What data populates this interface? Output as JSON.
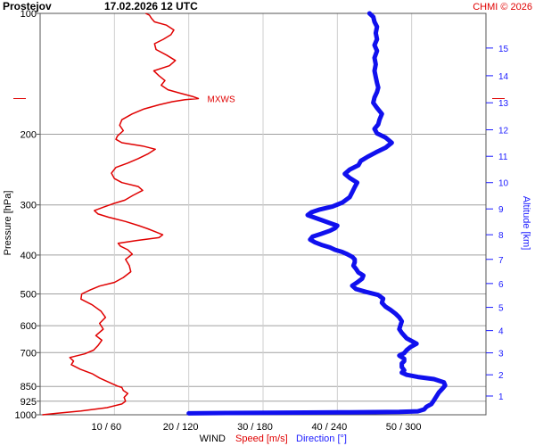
{
  "header": {
    "station": "Prostejov",
    "datetime": "17.02.2026 12 UTC",
    "credit": "CHMI © 2026"
  },
  "chart_data": {
    "type": "line",
    "left_axis": {
      "label": "Pressure [hPa]",
      "scale": "log",
      "ticks": [
        100,
        200,
        300,
        400,
        500,
        600,
        700,
        850,
        925,
        1000
      ],
      "tick_labels": [
        "100",
        "200",
        "300",
        "400",
        "500",
        "600",
        "700",
        "850",
        "925",
        "1000"
      ],
      "range": [
        100,
        1000
      ],
      "reversed": true
    },
    "right_axis": {
      "label": "Altitude [km]",
      "ticks": [
        1,
        2,
        3,
        4,
        5,
        6,
        7,
        8,
        9,
        10,
        11,
        12,
        13,
        14,
        15
      ],
      "tick_pressures": [
        898,
        795,
        701,
        617,
        540,
        471,
        410,
        356,
        307,
        264,
        227,
        195,
        167,
        143,
        122
      ],
      "color": "#1a1aff"
    },
    "bottom_axis": {
      "title": "WIND",
      "speed_label": "Speed [m/s]",
      "direction_label": "Direction [°]",
      "speed_range": [
        0,
        60
      ],
      "direction_range": [
        0,
        360
      ],
      "ticks": [
        10,
        20,
        30,
        40,
        50
      ],
      "tick_labels": [
        "10 / 60",
        "20 / 120",
        "30 / 180",
        "40 / 240",
        "50 / 300"
      ]
    },
    "grid": true,
    "annotation": {
      "text": "MXWS",
      "pressure": 163,
      "speed": 21.3
    },
    "series": [
      {
        "name": "Speed [m/s]",
        "unit": "m/s",
        "color": "#e00000",
        "points": [
          [
            1000,
            0.3
          ],
          [
            992,
            2.2
          ],
          [
            978,
            5.5
          ],
          [
            960,
            9.0
          ],
          [
            940,
            11.0
          ],
          [
            925,
            11.5
          ],
          [
            905,
            11.3
          ],
          [
            885,
            11.8
          ],
          [
            870,
            11.2
          ],
          [
            855,
            11.0
          ],
          [
            848,
            10.4
          ],
          [
            835,
            9.6
          ],
          [
            810,
            8.0
          ],
          [
            790,
            7.0
          ],
          [
            770,
            5.4
          ],
          [
            750,
            4.2
          ],
          [
            735,
            4.5
          ],
          [
            720,
            4.0
          ],
          [
            705,
            6.0
          ],
          [
            690,
            7.2
          ],
          [
            672,
            7.8
          ],
          [
            652,
            8.3
          ],
          [
            635,
            7.5
          ],
          [
            612,
            8.5
          ],
          [
            592,
            8.0
          ],
          [
            572,
            8.8
          ],
          [
            552,
            8.2
          ],
          [
            532,
            7.0
          ],
          [
            515,
            5.5
          ],
          [
            500,
            5.6
          ],
          [
            488,
            6.8
          ],
          [
            478,
            8.0
          ],
          [
            468,
            10.0
          ],
          [
            455,
            11.2
          ],
          [
            440,
            12.2
          ],
          [
            425,
            12.0
          ],
          [
            410,
            11.5
          ],
          [
            398,
            12.4
          ],
          [
            388,
            11.8
          ],
          [
            380,
            10.8
          ],
          [
            374,
            10.5
          ],
          [
            368,
            13.0
          ],
          [
            362,
            16.0
          ],
          [
            356,
            16.5
          ],
          [
            350,
            15.5
          ],
          [
            344,
            14.5
          ],
          [
            338,
            13.3
          ],
          [
            330,
            11.5
          ],
          [
            322,
            9.2
          ],
          [
            316,
            7.8
          ],
          [
            310,
            7.3
          ],
          [
            304,
            8.5
          ],
          [
            298,
            9.8
          ],
          [
            292,
            11.4
          ],
          [
            284,
            12.5
          ],
          [
            276,
            13.8
          ],
          [
            270,
            13.2
          ],
          [
            264,
            11.0
          ],
          [
            258,
            10.0
          ],
          [
            250,
            9.6
          ],
          [
            242,
            10.2
          ],
          [
            236,
            11.8
          ],
          [
            230,
            13.2
          ],
          [
            224,
            14.5
          ],
          [
            218,
            15.5
          ],
          [
            214,
            13.8
          ],
          [
            210,
            11.0
          ],
          [
            206,
            10.2
          ],
          [
            202,
            10.4
          ],
          [
            196,
            11.2
          ],
          [
            190,
            10.7
          ],
          [
            184,
            11.0
          ],
          [
            178,
            12.4
          ],
          [
            173,
            14.0
          ],
          [
            169,
            16.0
          ],
          [
            166,
            17.8
          ],
          [
            164,
            19.5
          ],
          [
            163,
            21.3
          ],
          [
            161,
            20.5
          ],
          [
            158,
            18.8
          ],
          [
            155,
            17.2
          ],
          [
            151,
            16.3
          ],
          [
            147,
            16.8
          ],
          [
            143,
            16.0
          ],
          [
            139,
            15.3
          ],
          [
            135,
            17.4
          ],
          [
            131,
            18.2
          ],
          [
            127,
            17.0
          ],
          [
            123,
            15.6
          ],
          [
            119,
            15.4
          ],
          [
            116,
            16.6
          ],
          [
            113,
            17.6
          ],
          [
            110,
            18.0
          ],
          [
            107,
            17.0
          ],
          [
            105,
            15.4
          ],
          [
            103,
            15.0
          ],
          [
            101,
            14.7
          ],
          [
            100,
            14.2
          ]
        ]
      },
      {
        "name": "Direction [°]",
        "unit": "°",
        "color": "#1010ee",
        "points": [
          [
            992,
            120
          ],
          [
            990,
            150
          ],
          [
            988,
            200
          ],
          [
            986,
            250
          ],
          [
            984,
            290
          ],
          [
            980,
            305
          ],
          [
            970,
            310
          ],
          [
            955,
            312
          ],
          [
            940,
            316
          ],
          [
            920,
            318
          ],
          [
            900,
            320
          ],
          [
            880,
            322
          ],
          [
            860,
            325
          ],
          [
            845,
            327
          ],
          [
            830,
            326
          ],
          [
            815,
            318
          ],
          [
            805,
            305
          ],
          [
            795,
            296
          ],
          [
            785,
            292
          ],
          [
            775,
            294
          ],
          [
            760,
            292
          ],
          [
            745,
            292
          ],
          [
            735,
            294
          ],
          [
            725,
            294
          ],
          [
            712,
            290
          ],
          [
            702,
            294
          ],
          [
            690,
            296
          ],
          [
            678,
            299
          ],
          [
            665,
            304
          ],
          [
            655,
            300
          ],
          [
            645,
            296
          ],
          [
            635,
            294
          ],
          [
            625,
            292
          ],
          [
            612,
            290
          ],
          [
            598,
            291
          ],
          [
            585,
            292
          ],
          [
            572,
            290
          ],
          [
            560,
            287
          ],
          [
            548,
            283
          ],
          [
            538,
            279
          ],
          [
            526,
            276
          ],
          [
            514,
            277
          ],
          [
            503,
            273
          ],
          [
            494,
            263
          ],
          [
            486,
            255
          ],
          [
            477,
            252
          ],
          [
            468,
            256
          ],
          [
            458,
            260
          ],
          [
            450,
            261
          ],
          [
            442,
            257
          ],
          [
            433,
            255
          ],
          [
            425,
            253
          ],
          [
            417,
            254
          ],
          [
            410,
            254
          ],
          [
            404,
            252
          ],
          [
            398,
            248
          ],
          [
            393,
            244
          ],
          [
            388,
            238
          ],
          [
            383,
            234
          ],
          [
            378,
            228
          ],
          [
            372,
            222
          ],
          [
            366,
            218
          ],
          [
            360,
            220
          ],
          [
            354,
            227
          ],
          [
            348,
            234
          ],
          [
            343,
            238
          ],
          [
            338,
            240
          ],
          [
            333,
            234
          ],
          [
            328,
            228
          ],
          [
            323,
            222
          ],
          [
            318,
            216
          ],
          [
            313,
            219
          ],
          [
            308,
            226
          ],
          [
            303,
            236
          ],
          [
            296,
            244
          ],
          [
            287,
            250
          ],
          [
            279,
            252
          ],
          [
            271,
            254
          ],
          [
            264,
            256
          ],
          [
            257,
            250
          ],
          [
            251,
            246
          ],
          [
            245,
            250
          ],
          [
            239,
            257
          ],
          [
            233,
            259
          ],
          [
            228,
            264
          ],
          [
            222,
            271
          ],
          [
            216,
            279
          ],
          [
            210,
            284
          ],
          [
            204,
            279
          ],
          [
            199,
            272
          ],
          [
            194,
            270
          ],
          [
            189,
            273
          ],
          [
            184,
            274
          ],
          [
            178,
            276
          ],
          [
            172,
            272
          ],
          [
            167,
            269
          ],
          [
            162,
            270
          ],
          [
            157,
            272
          ],
          [
            153,
            273
          ],
          [
            149,
            272
          ],
          [
            144,
            271
          ],
          [
            139,
            270
          ],
          [
            134,
            271
          ],
          [
            129,
            270
          ],
          [
            124,
            272
          ],
          [
            120,
            270
          ],
          [
            116,
            272
          ],
          [
            112,
            271
          ],
          [
            108,
            272
          ],
          [
            105,
            270
          ],
          [
            102,
            269
          ],
          [
            100,
            266
          ]
        ]
      }
    ]
  }
}
